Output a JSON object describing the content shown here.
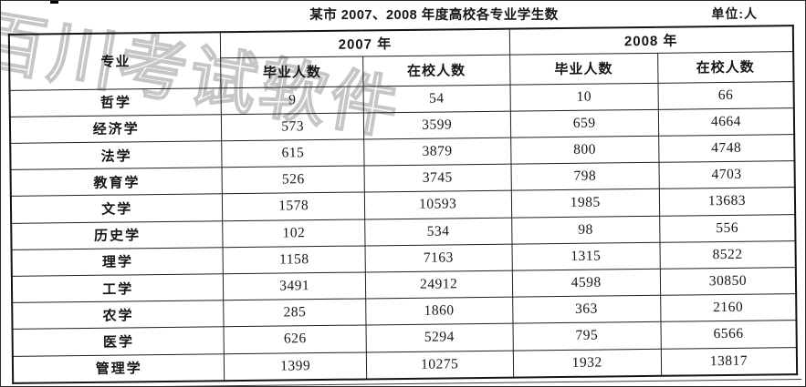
{
  "page": {
    "title": "某市 2007、2008 年度高校各专业学生数",
    "unit_label": "单位:人",
    "watermark": "百川考试软件"
  },
  "table": {
    "headers": {
      "major": "专业",
      "year_2007": "2007 年",
      "year_2008": "2008 年",
      "graduates": "毕业人数",
      "enrolled": "在校人数"
    },
    "rows": [
      [
        "哲学",
        "9",
        "54",
        "10",
        "66"
      ],
      [
        "经济学",
        "573",
        "3599",
        "659",
        "4664"
      ],
      [
        "法学",
        "615",
        "3879",
        "800",
        "4748"
      ],
      [
        "教育学",
        "526",
        "3745",
        "798",
        "4703"
      ],
      [
        "文学",
        "1578",
        "10593",
        "1985",
        "13683"
      ],
      [
        "历史学",
        "102",
        "534",
        "98",
        "556"
      ],
      [
        "理学",
        "1158",
        "7163",
        "1315",
        "8522"
      ],
      [
        "工学",
        "3491",
        "24912",
        "4598",
        "30850"
      ],
      [
        "农学",
        "285",
        "1860",
        "363",
        "2160"
      ],
      [
        "医学",
        "626",
        "5294",
        "795",
        "6566"
      ],
      [
        "管理学",
        "1399",
        "10275",
        "1932",
        "13817"
      ]
    ]
  },
  "colors": {
    "ink": "#1c1c1c",
    "paper": "#ffffff",
    "watermark_outline": "#c6c6c6"
  }
}
